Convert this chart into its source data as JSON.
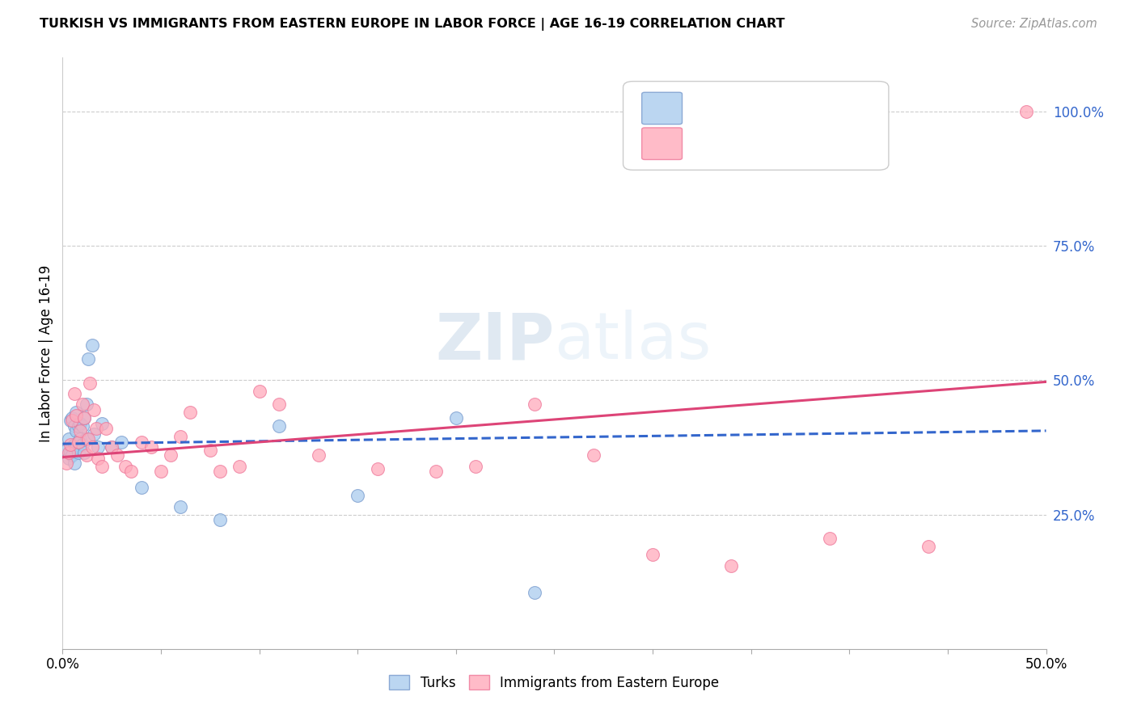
{
  "title": "TURKISH VS IMMIGRANTS FROM EASTERN EUROPE IN LABOR FORCE | AGE 16-19 CORRELATION CHART",
  "source": "Source: ZipAtlas.com",
  "ylabel": "In Labor Force | Age 16-19",
  "xlim": [
    0.0,
    0.5
  ],
  "ylim": [
    0.0,
    1.1
  ],
  "grid_color": "#cccccc",
  "background_color": "#ffffff",
  "turks_color": "#aaccee",
  "turks_edge_color": "#7799cc",
  "eastern_color": "#ffaabb",
  "eastern_edge_color": "#ee7799",
  "trend_turks_color": "#3366cc",
  "trend_eastern_color": "#dd4477",
  "label_turks": "Turks",
  "label_eastern": "Immigrants from Eastern Europe",
  "turks_x": [
    0.002,
    0.003,
    0.003,
    0.004,
    0.004,
    0.005,
    0.005,
    0.005,
    0.006,
    0.006,
    0.006,
    0.007,
    0.007,
    0.007,
    0.008,
    0.008,
    0.008,
    0.009,
    0.009,
    0.01,
    0.01,
    0.011,
    0.011,
    0.012,
    0.012,
    0.013,
    0.015,
    0.016,
    0.018,
    0.02,
    0.025,
    0.03,
    0.04,
    0.06,
    0.08,
    0.11,
    0.15,
    0.2,
    0.24
  ],
  "turks_y": [
    0.37,
    0.355,
    0.39,
    0.365,
    0.425,
    0.375,
    0.43,
    0.36,
    0.415,
    0.38,
    0.345,
    0.405,
    0.375,
    0.44,
    0.385,
    0.415,
    0.365,
    0.39,
    0.42,
    0.38,
    0.415,
    0.43,
    0.365,
    0.455,
    0.39,
    0.54,
    0.565,
    0.4,
    0.375,
    0.42,
    0.375,
    0.385,
    0.3,
    0.265,
    0.24,
    0.415,
    0.285,
    0.43,
    0.105
  ],
  "eastern_x": [
    0.002,
    0.003,
    0.004,
    0.005,
    0.006,
    0.007,
    0.008,
    0.009,
    0.01,
    0.011,
    0.012,
    0.013,
    0.014,
    0.015,
    0.016,
    0.017,
    0.018,
    0.02,
    0.022,
    0.025,
    0.028,
    0.032,
    0.035,
    0.04,
    0.045,
    0.05,
    0.055,
    0.06,
    0.065,
    0.075,
    0.08,
    0.09,
    0.1,
    0.11,
    0.13,
    0.16,
    0.19,
    0.21,
    0.24,
    0.27,
    0.3,
    0.34,
    0.39,
    0.44,
    0.49
  ],
  "eastern_y": [
    0.345,
    0.365,
    0.38,
    0.425,
    0.475,
    0.435,
    0.385,
    0.405,
    0.455,
    0.43,
    0.36,
    0.39,
    0.495,
    0.375,
    0.445,
    0.41,
    0.355,
    0.34,
    0.41,
    0.375,
    0.36,
    0.34,
    0.33,
    0.385,
    0.375,
    0.33,
    0.36,
    0.395,
    0.44,
    0.37,
    0.33,
    0.34,
    0.48,
    0.455,
    0.36,
    0.335,
    0.33,
    0.34,
    0.455,
    0.36,
    0.175,
    0.155,
    0.205,
    0.19,
    1.0
  ],
  "watermark_zip": "ZIP",
  "watermark_atlas": "atlas"
}
